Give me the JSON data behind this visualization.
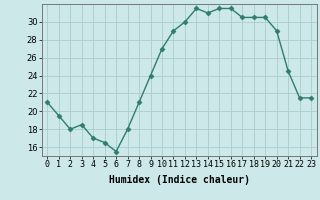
{
  "x": [
    0,
    1,
    2,
    3,
    4,
    5,
    6,
    7,
    8,
    9,
    10,
    11,
    12,
    13,
    14,
    15,
    16,
    17,
    18,
    19,
    20,
    21,
    22,
    23
  ],
  "y": [
    21,
    19.5,
    18,
    18.5,
    17,
    16.5,
    15.5,
    18,
    21,
    24,
    27,
    29,
    30,
    31.5,
    31,
    31.5,
    31.5,
    30.5,
    30.5,
    30.5,
    29,
    24.5,
    21.5,
    21.5
  ],
  "line_color": "#2e7d6e",
  "marker": "D",
  "marker_size": 2.5,
  "bg_color": "#cce8e8",
  "grid_color": "#aacccc",
  "xlabel": "Humidex (Indice chaleur)",
  "ylim": [
    15,
    32
  ],
  "yticks": [
    16,
    18,
    20,
    22,
    24,
    26,
    28,
    30
  ],
  "xticks": [
    0,
    1,
    2,
    3,
    4,
    5,
    6,
    7,
    8,
    9,
    10,
    11,
    12,
    13,
    14,
    15,
    16,
    17,
    18,
    19,
    20,
    21,
    22,
    23
  ],
  "xlabel_fontsize": 7,
  "tick_fontsize": 6,
  "line_width": 1.0
}
